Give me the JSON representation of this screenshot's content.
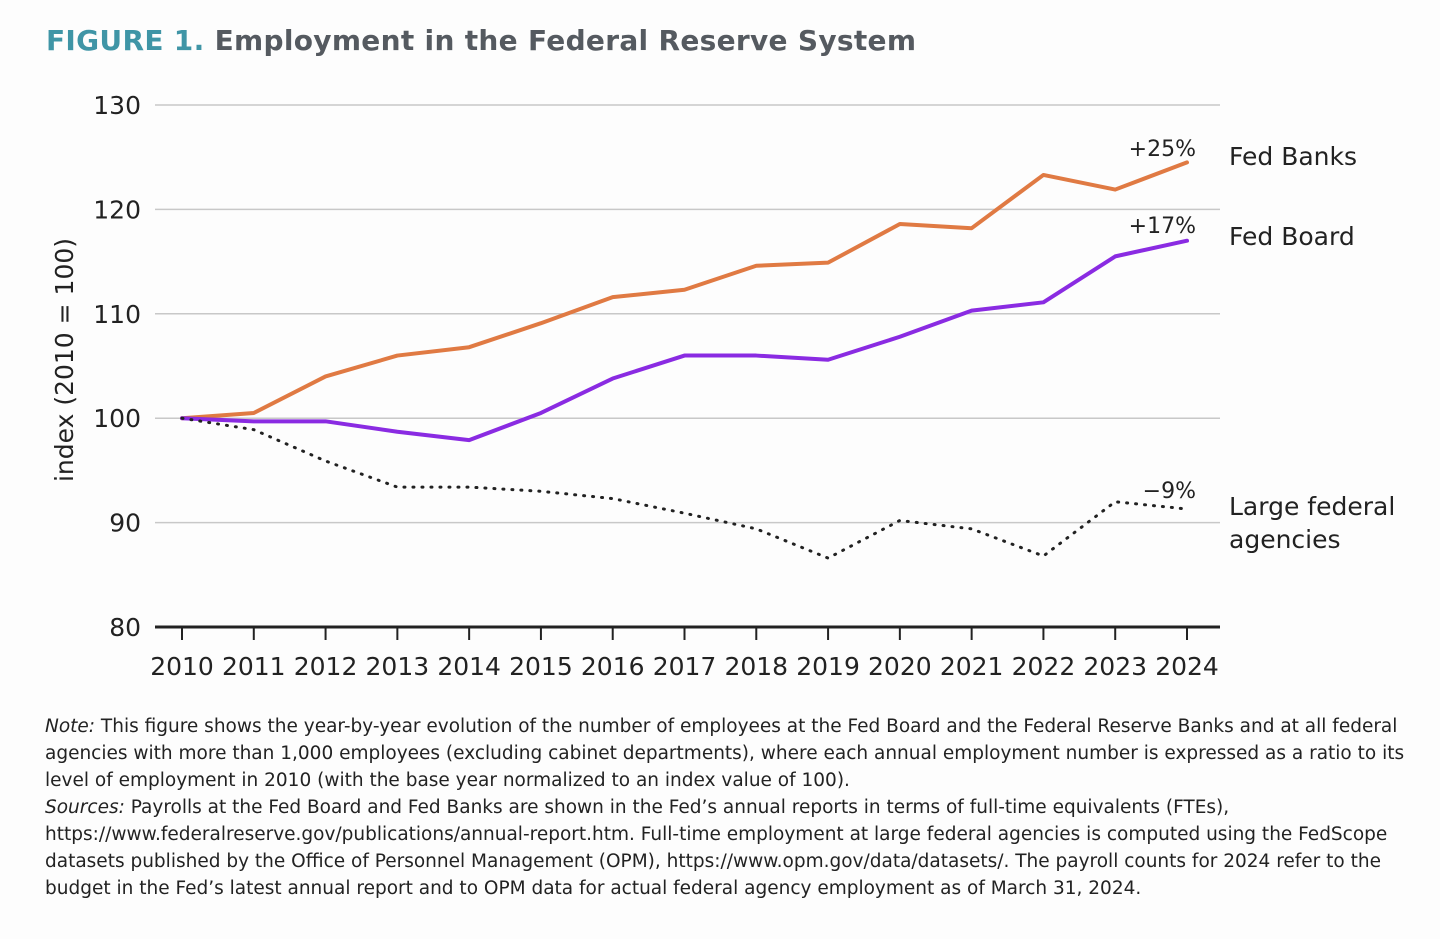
{
  "figure_label": "FIGURE 1.",
  "title": "Employment in the Federal Reserve System",
  "chart_data": {
    "type": "line",
    "title": "Employment in the Federal Reserve System",
    "ylabel": "index (2010 = 100)",
    "xlabel": "",
    "ylim": [
      80,
      130
    ],
    "yticks": [
      80,
      90,
      100,
      110,
      120,
      130
    ],
    "grid": true,
    "x": [
      2010,
      2011,
      2012,
      2013,
      2014,
      2015,
      2016,
      2017,
      2018,
      2019,
      2020,
      2021,
      2022,
      2023,
      2024
    ],
    "series": [
      {
        "name": "Fed Banks",
        "color": "#e07a43",
        "style": "solid",
        "end_label": "+25%",
        "values": [
          100,
          100.5,
          104.0,
          106.0,
          106.8,
          109.1,
          111.6,
          112.3,
          114.6,
          114.9,
          118.6,
          118.2,
          123.3,
          121.9,
          124.5
        ]
      },
      {
        "name": "Fed Board",
        "color": "#8a2be2",
        "style": "solid",
        "end_label": "+17%",
        "values": [
          100,
          99.7,
          99.7,
          98.7,
          97.9,
          100.5,
          103.8,
          106.0,
          106.0,
          105.6,
          107.8,
          110.3,
          111.1,
          115.5,
          117.0
        ]
      },
      {
        "name": "Large federal agencies",
        "name_lines": [
          "Large federal",
          "agencies"
        ],
        "color": "#222222",
        "style": "dotted",
        "end_label": "−9%",
        "values": [
          100,
          98.9,
          95.9,
          93.4,
          93.4,
          93.0,
          92.3,
          90.9,
          89.4,
          86.6,
          90.2,
          89.4,
          86.8,
          92.0,
          91.3
        ]
      }
    ]
  },
  "notes": {
    "note_label": "Note:",
    "note_text": " This figure shows the year-by-year evolution of the number of employees at the Fed Board and the Federal Reserve Banks and at all federal agencies with more than 1,000 employees (excluding cabinet departments), where each annual employment number is expressed as a ratio to its level of employment in 2010 (with the base year normalized to an index value of 100).",
    "sources_label": "Sources:",
    "sources_text": " Payrolls at the Fed Board and Fed Banks are shown in the Fed’s annual reports in terms of full-time equivalents (FTEs), https://www.federalreserve.gov/publications/annual-report.htm. Full-time employment at large federal agencies is computed using the FedScope datasets published by the Office of Personnel Management (OPM), https://www.opm.gov/data/datasets/. The payroll counts for 2024 refer to the budget in the Fed’s latest annual report and to OPM data for actual federal agency employment as of March 31, 2024."
  }
}
